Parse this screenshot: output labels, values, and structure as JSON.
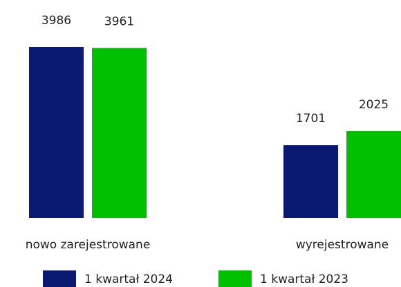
{
  "chart_data": {
    "type": "bar",
    "categories": [
      "nowo zarejestrowane",
      "wyrejestrowane"
    ],
    "series": [
      {
        "name": "1 kwartał 2024",
        "color": "#0a1a72",
        "values": [
          3986,
          1701
        ]
      },
      {
        "name": "1 kwartał 2023",
        "color": "#00c000",
        "values": [
          3961,
          2025
        ]
      }
    ],
    "legend": "bottom"
  }
}
